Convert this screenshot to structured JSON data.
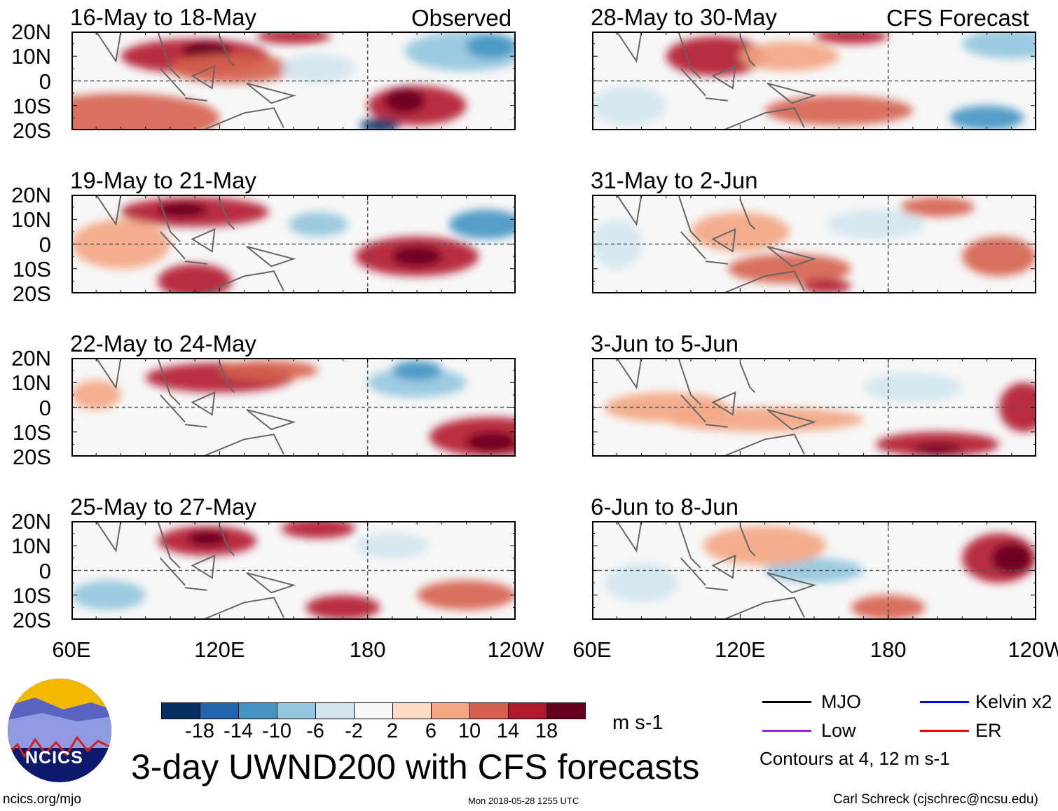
{
  "header": {
    "observed_label": "Observed",
    "forecast_label": "CFS Forecast"
  },
  "panels": [
    {
      "title": "16-May to 18-May",
      "kind": "observed"
    },
    {
      "title": "19-May to 21-May",
      "kind": "observed"
    },
    {
      "title": "22-May to 24-May",
      "kind": "observed"
    },
    {
      "title": "25-May to 27-May",
      "kind": "observed"
    },
    {
      "title": "28-May to 30-May",
      "kind": "forecast"
    },
    {
      "title": "31-May to 2-Jun",
      "kind": "forecast"
    },
    {
      "title": "3-Jun to 5-Jun",
      "kind": "forecast"
    },
    {
      "title": "6-Jun to 8-Jun",
      "kind": "forecast"
    }
  ],
  "lat_labels": [
    "20N",
    "10N",
    "0",
    "10S",
    "20S"
  ],
  "lon_labels": [
    "60E",
    "120E",
    "180",
    "120W"
  ],
  "colorbar": {
    "colors": [
      "#053061",
      "#2166ac",
      "#4393c3",
      "#92c5de",
      "#d1e5f0",
      "#f7f7f7",
      "#fddbc7",
      "#f4a582",
      "#d6604d",
      "#b2182b",
      "#67001f"
    ],
    "labels": [
      "-18",
      "-14",
      "-10",
      "-6",
      "-2",
      "2",
      "6",
      "10",
      "14",
      "18"
    ],
    "units": "m s-1"
  },
  "legend": {
    "items": [
      {
        "label": "MJO",
        "color": "#000000"
      },
      {
        "label": "Kelvin x2",
        "color": "#0000ff"
      },
      {
        "label": "Low",
        "color": "#a020f0"
      },
      {
        "label": "ER",
        "color": "#ff0000"
      }
    ],
    "contours_note": "Contours at 4, 12 m s-1"
  },
  "footer": {
    "title": "3-day UWND200 with CFS forecasts",
    "url": "ncics.org/mjo",
    "timestamp": "Mon 2018-05-28 1255 UTC",
    "credit": "Carl Schreck (cjschrec@ncsu.edu)",
    "logo_text": "NCICS"
  }
}
